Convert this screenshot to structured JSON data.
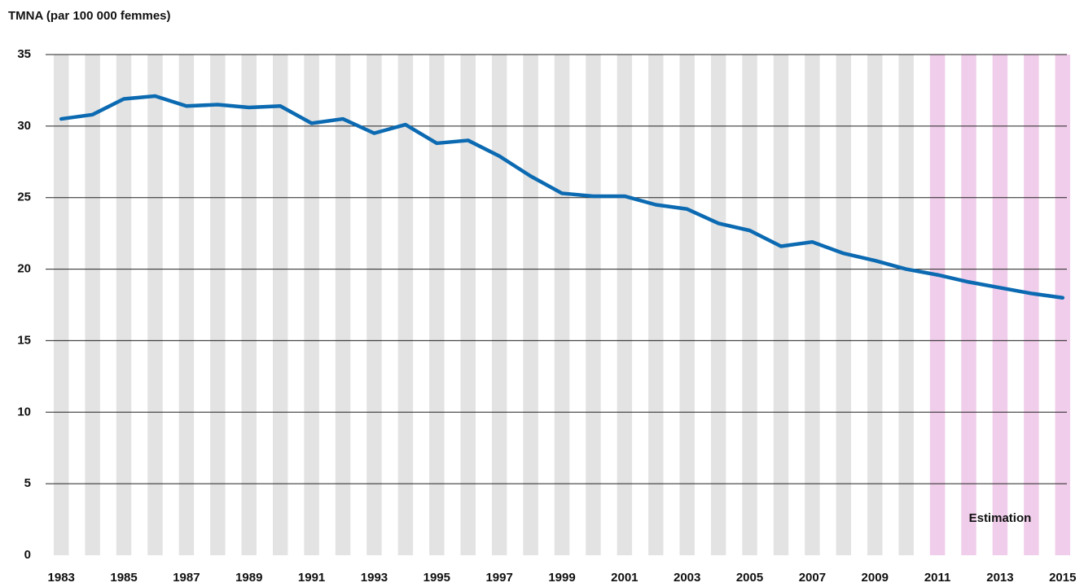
{
  "chart_data": {
    "type": "line",
    "y_axis_title": "TMNA (par 100 000 femmes)",
    "annotation": "Estimation",
    "x": [
      1983,
      1984,
      1985,
      1986,
      1987,
      1988,
      1989,
      1990,
      1991,
      1992,
      1993,
      1994,
      1995,
      1996,
      1997,
      1998,
      1999,
      2000,
      2001,
      2002,
      2003,
      2004,
      2005,
      2006,
      2007,
      2008,
      2009,
      2010,
      2011,
      2012,
      2013,
      2014,
      2015
    ],
    "values": [
      30.5,
      30.8,
      31.9,
      32.1,
      31.4,
      31.5,
      31.3,
      31.4,
      30.2,
      30.5,
      29.5,
      30.1,
      28.8,
      29.0,
      27.9,
      26.5,
      25.3,
      25.1,
      25.1,
      24.5,
      24.2,
      23.2,
      22.7,
      21.6,
      21.9,
      21.1,
      20.6,
      20.0,
      19.6,
      19.1,
      18.7,
      18.3,
      18.0
    ],
    "color": "#0b6ab1",
    "band_color": "#e3e3e3",
    "estimate_start": 2011,
    "estimate_band_color": "#f0cdea",
    "xlim": [
      1982.5,
      2015.5
    ],
    "xticks": [
      1983,
      1985,
      1987,
      1989,
      1991,
      1993,
      1995,
      1997,
      1999,
      2001,
      2003,
      2005,
      2007,
      2009,
      2011,
      2013,
      2015
    ],
    "ylim": [
      0,
      35
    ],
    "yticks": [
      0,
      5,
      10,
      15,
      20,
      25,
      30,
      35
    ],
    "grid": true
  }
}
